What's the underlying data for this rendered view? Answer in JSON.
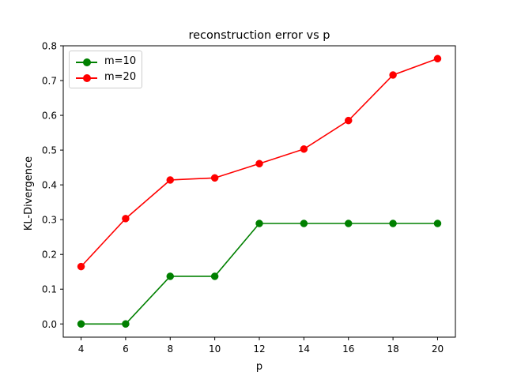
{
  "chart_data": {
    "type": "line",
    "title": "reconstruction error vs p",
    "xlabel": "p",
    "ylabel": "KL-Divergence",
    "x": [
      4,
      6,
      8,
      10,
      12,
      14,
      16,
      18,
      20
    ],
    "xticks": [
      "4",
      "6",
      "8",
      "10",
      "12",
      "14",
      "16",
      "18",
      "20"
    ],
    "yticks": [
      "0.0",
      "0.1",
      "0.2",
      "0.3",
      "0.4",
      "0.5",
      "0.6",
      "0.7",
      "0.8"
    ],
    "xlim": [
      3.2,
      20.8
    ],
    "ylim": [
      -0.038,
      0.8
    ],
    "grid": false,
    "legend_position": "upper-left",
    "series": [
      {
        "name": "m=10",
        "color": "#008000",
        "marker": "circle",
        "values": [
          0.0,
          0.0,
          0.137,
          0.137,
          0.289,
          0.289,
          0.289,
          0.289,
          0.289
        ]
      },
      {
        "name": "m=20",
        "color": "#ff0000",
        "marker": "circle",
        "values": [
          0.165,
          0.303,
          0.414,
          0.42,
          0.461,
          0.503,
          0.585,
          0.716,
          0.763
        ]
      }
    ]
  }
}
